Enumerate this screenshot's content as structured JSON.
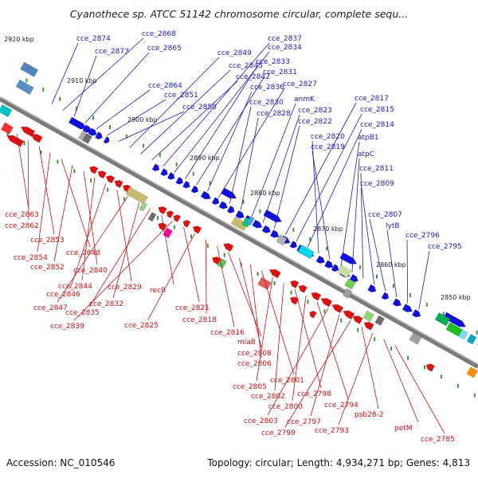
{
  "title": "Cyanothece sp. ATCC 51142 chromosome circular, complete sequ...",
  "accession": "Accession: NC_010546",
  "summary": "Topology: circular; Length: 4,934,271 bp; Genes: 4,813",
  "colors": {
    "backbone": "#777777",
    "plus_strand": "#1010e0",
    "minus_strand": "#e01010",
    "label_plus": "#1a1ad0",
    "label_minus": "#d01010",
    "tick": "#3a9a3a"
  },
  "scale_labels": [
    "2920 kbp",
    "2910 kbp",
    "2900 kbp",
    "2890 kbp",
    "2880 kbp",
    "2870 kbp",
    "2860 kbp",
    "2850 kbp"
  ],
  "labels_plus": [
    "cce_2874",
    "cce_2868",
    "cce_2873",
    "cce_2865",
    "cce_2864",
    "cce_2851",
    "cce_2850",
    "cce_2849",
    "cce_2845",
    "cce_2842",
    "cce_2837",
    "cce_2834",
    "cce_2833",
    "cce_2831",
    "cce_2836",
    "cce_2827",
    "cce_2830",
    "cce_2828",
    "anmK",
    "cce_2823",
    "cce_2822",
    "cce_2817",
    "cce_2815",
    "cce_2814",
    "cce_2820",
    "cce_2819",
    "atpB1",
    "atpC",
    "cce_2811",
    "cce_2809",
    "cce_2807",
    "lytB",
    "cce_2796",
    "cce_2795"
  ],
  "labels_minus": [
    "cce_2863",
    "cce_2862",
    "cce_2853",
    "cce_2854",
    "cce_2848",
    "cce_2852",
    "cce_2840",
    "cce_2844",
    "cce_2846",
    "cce_2829",
    "cce_2847",
    "cce_2832",
    "cce_2835",
    "recR",
    "cce_2839",
    "cce_2821",
    "cce_2825",
    "cce_2818",
    "cce_2816",
    "miaB",
    "cce_2808",
    "cce_2806",
    "cce_2801",
    "cce_2805",
    "cce_2802",
    "cce_2798",
    "cce_2800",
    "cce_2794",
    "cce_2803",
    "cce_2797",
    "cce_2799",
    "psb28-2",
    "cce_2793",
    "petM",
    "cce_2785"
  ]
}
